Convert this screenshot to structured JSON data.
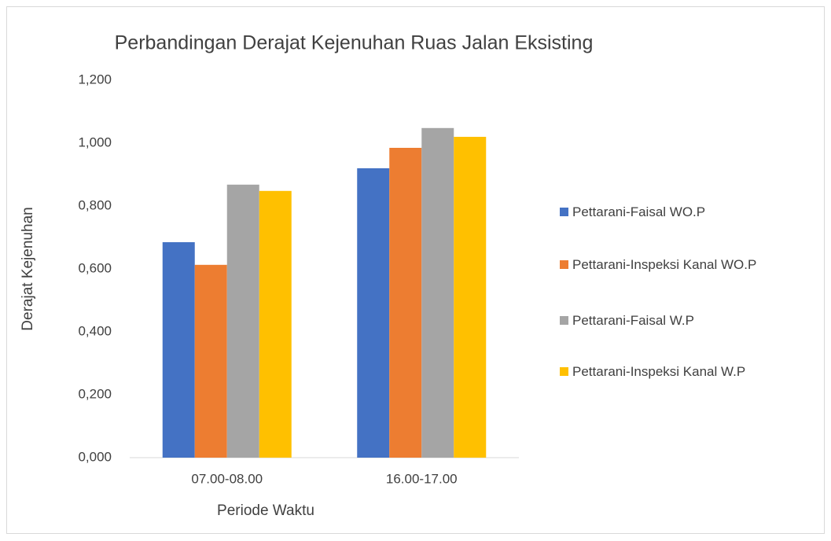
{
  "chart_data": {
    "type": "bar",
    "title": "Perbandingan Derajat Kejenuhan Ruas Jalan Eksisting",
    "x_label": "Periode Waktu",
    "y_label": "Derajat Kejenuhan",
    "categories": [
      "07.00-08.00",
      "16.00-17.00"
    ],
    "series": [
      {
        "name": "Pettarani-Faisal WO.P",
        "color": "#4472c4",
        "values": [
          0.685,
          0.92
        ]
      },
      {
        "name": "Pettarani-Inspeksi Kanal WO.P",
        "color": "#ed7d31",
        "values": [
          0.613,
          0.985
        ]
      },
      {
        "name": "Pettarani-Faisal W.P",
        "color": "#a5a5a5",
        "values": [
          0.868,
          1.048
        ]
      },
      {
        "name": "Pettarani-Inspeksi Kanal W.P",
        "color": "#ffc000",
        "values": [
          0.848,
          1.02
        ]
      }
    ],
    "ylim": [
      0,
      1.2
    ],
    "yticks": [
      {
        "value": 0,
        "label": "0,000"
      },
      {
        "value": 0.2,
        "label": "0,200"
      },
      {
        "value": 0.4,
        "label": "0,400"
      },
      {
        "value": 0.6,
        "label": "0,600"
      },
      {
        "value": 0.8,
        "label": "0,800"
      },
      {
        "value": 1.0,
        "label": "1,000"
      },
      {
        "value": 1.2,
        "label": "1,200"
      }
    ],
    "grid": false,
    "legend": "right"
  }
}
